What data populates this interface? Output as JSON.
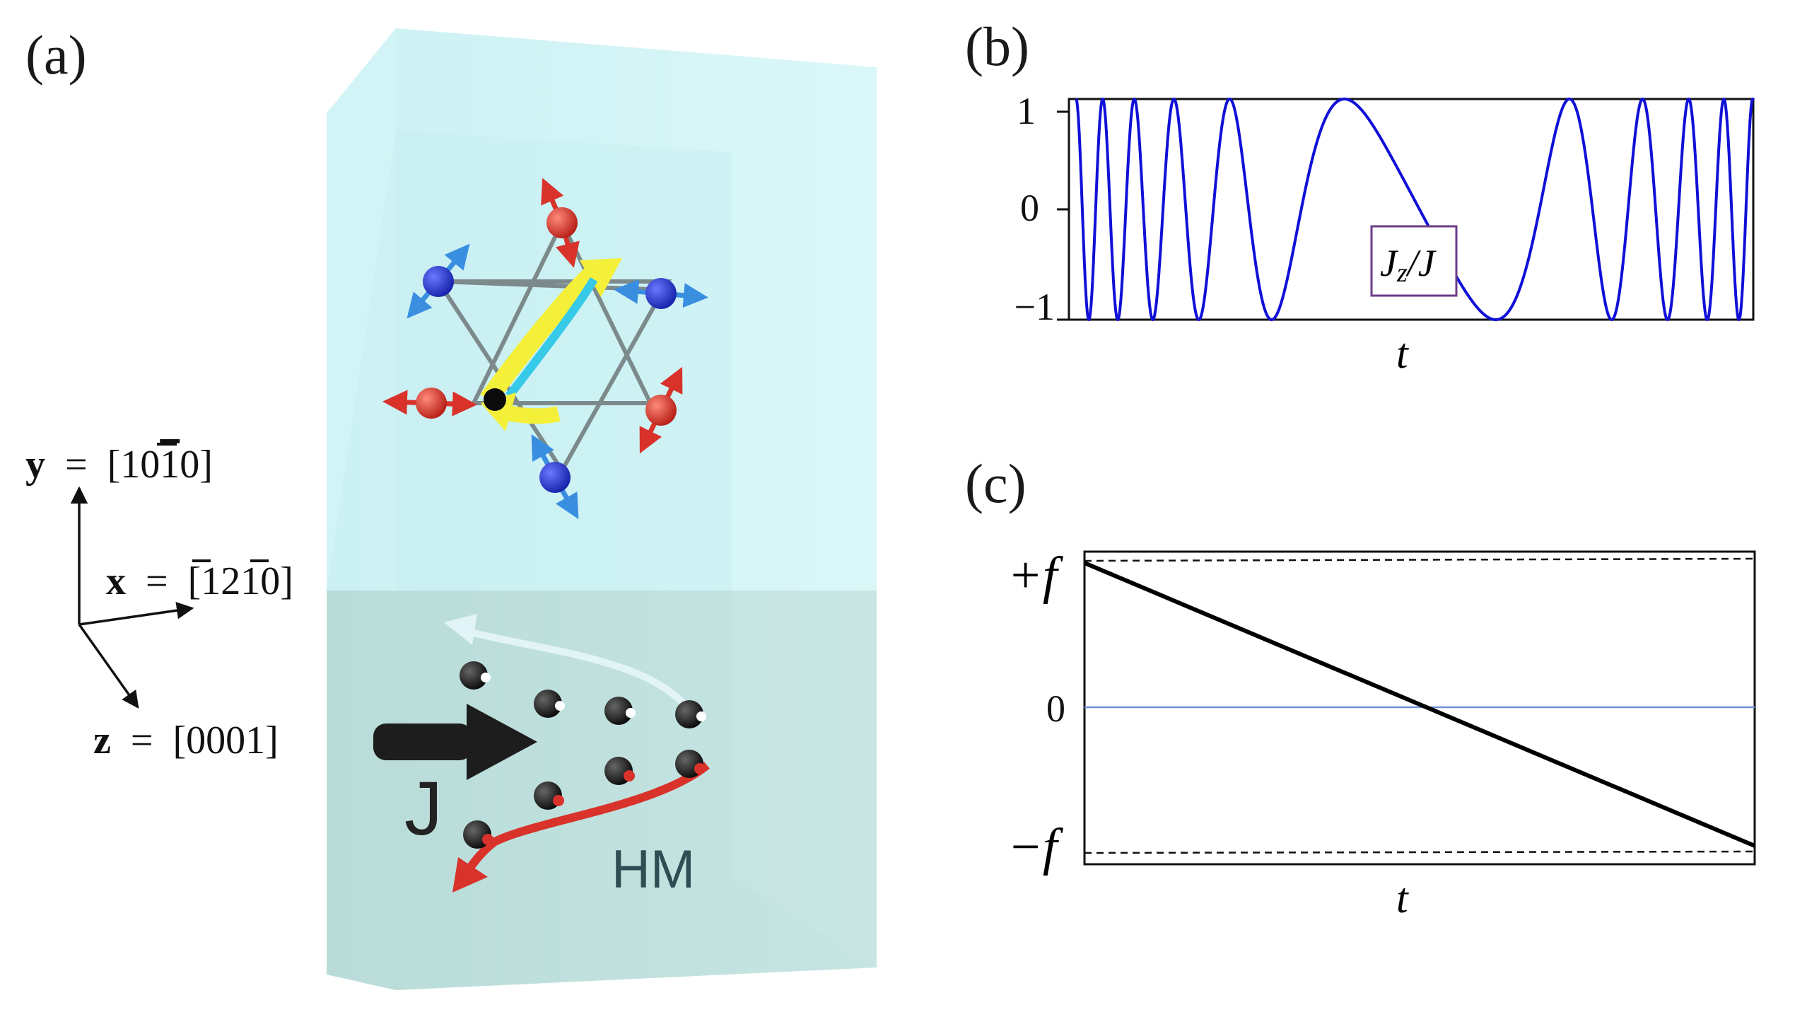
{
  "panels": {
    "a": {
      "label": "(a)",
      "axes": {
        "y": {
          "name": "y",
          "value": "[10",
          "bar": "1",
          "tail": "0]"
        },
        "x": {
          "name": "x",
          "value": "[",
          "bar1": "1",
          "mid": "2",
          "bar2": "1",
          "tail": "0]"
        },
        "z": {
          "name": "z",
          "value": "[0001]"
        },
        "eq": "="
      },
      "current_label": "J",
      "layer_label": "HM",
      "colors": {
        "top_layer": "#cdf3f5",
        "bottom_layer": "#bfe0dd",
        "red_spin": "#d8322a",
        "blue_spin": "#2430c8",
        "arrow_yellow": "#f4f03a",
        "arrow_cyan": "#36c9e8"
      }
    },
    "b": {
      "label": "(b)",
      "box_label": "J",
      "box_sub": "z",
      "box_tail": "/J",
      "x_label": "t",
      "ticks": [
        "1",
        "0",
        "−1"
      ]
    },
    "c": {
      "label": "(c)",
      "x_label": "t",
      "ticks": [
        "+f",
        "0",
        "−f"
      ]
    }
  },
  "chart_data": [
    {
      "type": "line",
      "panel": "b",
      "xlabel": "t",
      "ylabel": "",
      "ylim": [
        -1,
        1
      ],
      "yticks": [
        1,
        0,
        -1
      ],
      "series": [
        {
          "name": "Jz/J",
          "color": "#1010d8",
          "values_description_free": [
            -1,
            1
          ]
        }
      ],
      "legend": "center",
      "grid": false
    },
    {
      "type": "line",
      "panel": "c",
      "xlabel": "t",
      "ylabel": "",
      "yticks": [
        "+f",
        "0",
        "−f"
      ],
      "x": [
        0,
        1
      ],
      "series": [
        {
          "values": [
            1,
            -1
          ],
          "color": "#000000"
        },
        {
          "values": [
            0,
            0
          ],
          "color": "#6f8fd6"
        },
        {
          "values": [
            1.05,
            1.05
          ],
          "color": "#000000",
          "style": "dashed"
        },
        {
          "values": [
            -1.05,
            -1.05
          ],
          "color": "#000000",
          "style": "dashed"
        }
      ],
      "grid": false
    }
  ]
}
